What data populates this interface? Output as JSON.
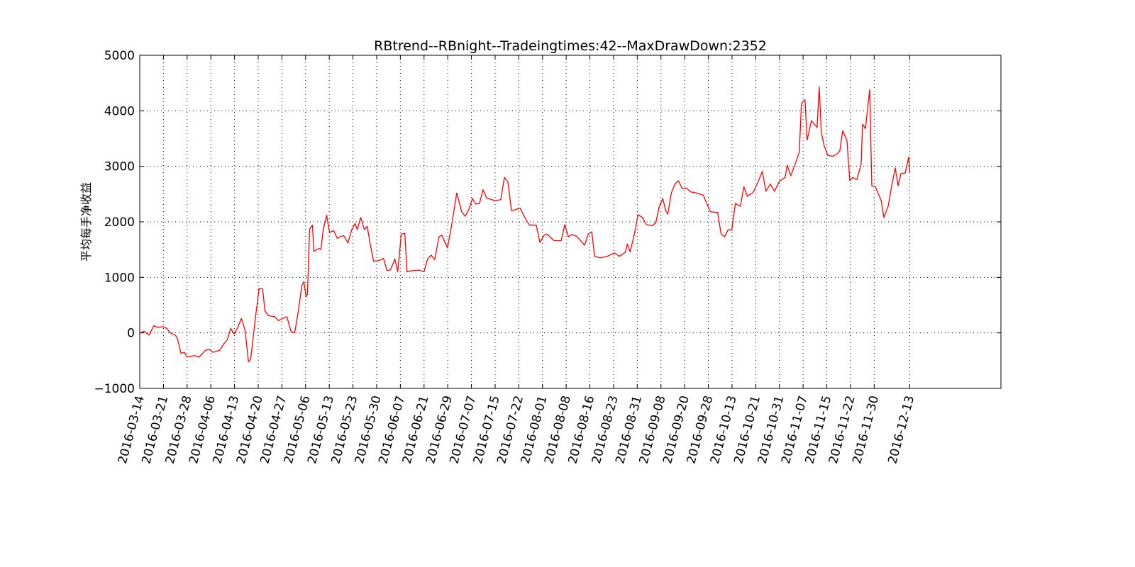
{
  "chart_data": {
    "type": "line",
    "title": "RBtrend--RBnight--Tradeingtimes:42--MaxDrawDown:2352",
    "ylabel": "平均每手净收益",
    "color": "#ff0000",
    "grid": true,
    "xlim": [
      0,
      363.5
    ],
    "ylim": [
      -1000,
      5000
    ],
    "yticks": [
      {
        "value": -1000,
        "label": "−1000"
      },
      0,
      1000,
      2000,
      3000,
      4000,
      5000
    ],
    "xticks": [
      {
        "value": 0,
        "label": "2016-03-14"
      },
      {
        "value": 10,
        "label": "2016-03-21"
      },
      {
        "value": 20,
        "label": "2016-03-28"
      },
      {
        "value": 30,
        "label": "2016-04-06"
      },
      {
        "value": 40,
        "label": "2016-04-13"
      },
      {
        "value": 50,
        "label": "2016-04-20"
      },
      {
        "value": 60,
        "label": "2016-04-27"
      },
      {
        "value": 70,
        "label": "2016-05-06"
      },
      {
        "value": 80,
        "label": "2016-05-13"
      },
      {
        "value": 90,
        "label": "2016-05-23"
      },
      {
        "value": 100,
        "label": "2016-05-30"
      },
      {
        "value": 110,
        "label": "2016-06-07"
      },
      {
        "value": 120,
        "label": "2016-06-21"
      },
      {
        "value": 130,
        "label": "2016-06-29"
      },
      {
        "value": 140,
        "label": "2016-07-07"
      },
      {
        "value": 150,
        "label": "2016-07-15"
      },
      {
        "value": 160,
        "label": "2016-07-22"
      },
      {
        "value": 170,
        "label": "2016-08-01"
      },
      {
        "value": 180,
        "label": "2016-08-08"
      },
      {
        "value": 190,
        "label": "2016-08-16"
      },
      {
        "value": 200,
        "label": "2016-08-23"
      },
      {
        "value": 210,
        "label": "2016-08-31"
      },
      {
        "value": 220,
        "label": "2016-09-08"
      },
      {
        "value": 230,
        "label": "2016-09-20"
      },
      {
        "value": 240,
        "label": "2016-09-28"
      },
      {
        "value": 250,
        "label": "2016-10-13"
      },
      {
        "value": 260,
        "label": "2016-10-21"
      },
      {
        "value": 270,
        "label": "2016-10-31"
      },
      {
        "value": 280,
        "label": "2016-11-07"
      },
      {
        "value": 290,
        "label": "2016-11-15"
      },
      {
        "value": 300,
        "label": "2016-11-22"
      },
      {
        "value": 310,
        "label": "2016-11-30"
      },
      {
        "value": 325,
        "label": "2016-12-13"
      }
    ],
    "x": [
      0,
      1.8,
      3.9,
      6,
      7.5,
      9.9,
      11.4,
      12.9,
      15,
      15.9,
      17.4,
      18.9,
      19.8,
      21.9,
      23.4,
      24.9,
      27.9,
      29.4,
      30.9,
      33.9,
      35.4,
      36.9,
      38.4,
      39.9,
      41.4,
      42.9,
      44.4,
      45.9,
      46.8,
      48.9,
      50.4,
      51.9,
      52.8,
      54.3,
      57,
      58.5,
      60.3,
      62.1,
      63.9,
      65.4,
      66.9,
      68.4,
      69.3,
      70.2,
      70.8,
      71.7,
      72.9,
      73.5,
      75.6,
      76.5,
      77.4,
      78.9,
      80.1,
      81.9,
      83.4,
      84.9,
      86.1,
      87.9,
      89.4,
      90.9,
      91.8,
      93.3,
      94.8,
      96,
      97.2,
      98.7,
      100.8,
      102.9,
      104.4,
      105.9,
      107.7,
      108.9,
      110.4,
      111.9,
      112.8,
      114.9,
      117.9,
      120,
      121.5,
      123,
      124.5,
      126.3,
      127.5,
      129.9,
      131.7,
      133.8,
      135.9,
      137.4,
      138.9,
      140.4,
      141.9,
      143.4,
      144.9,
      146.4,
      147.9,
      150,
      152.4,
      153.9,
      155.4,
      156.9,
      158.7,
      160.5,
      162.3,
      163.5,
      164.7,
      167.4,
      168.9,
      170.7,
      171.9,
      173.4,
      174.9,
      177.9,
      179.4,
      180.9,
      182.4,
      184.5,
      186.3,
      187.8,
      189.3,
      190.8,
      192,
      194.4,
      197.4,
      200.4,
      202.5,
      204.9,
      205.8,
      207,
      208.8,
      210.3,
      212.1,
      213.9,
      216.3,
      217.8,
      219.3,
      220.8,
      222,
      222.9,
      224.4,
      225.9,
      227.4,
      228.9,
      230.7,
      232.5,
      234.9,
      237.9,
      239.4,
      240.9,
      243.9,
      245.4,
      246.9,
      248.4,
      249.9,
      251.4,
      253.5,
      255,
      256.5,
      258.9,
      261,
      262.8,
      264.3,
      266.1,
      267.9,
      270,
      272.4,
      273.3,
      274.8,
      276.9,
      278.4,
      279.3,
      280.8,
      281.7,
      283.5,
      285.3,
      285.9,
      286.8,
      287.7,
      288.9,
      290.4,
      292.5,
      294.3,
      295.5,
      296.7,
      298.5,
      299.7,
      300.9,
      302.7,
      304.5,
      305.1,
      306.3,
      308.1,
      309,
      310.5,
      312.9,
      314.1,
      315.9,
      317.4,
      318.9,
      320.1,
      321.3,
      323.1,
      324.6,
      325
    ],
    "values": [
      0,
      30,
      -40,
      130,
      100,
      110,
      80,
      0,
      -40,
      -100,
      -370,
      -350,
      -430,
      -420,
      -410,
      -440,
      -310,
      -300,
      -350,
      -310,
      -200,
      -130,
      80,
      -20,
      100,
      260,
      60,
      -520,
      -480,
      300,
      800,
      790,
      400,
      310,
      290,
      220,
      260,
      290,
      20,
      0,
      380,
      850,
      920,
      650,
      700,
      1870,
      1940,
      1470,
      1520,
      1500,
      1850,
      2120,
      1810,
      1840,
      1700,
      1740,
      1750,
      1620,
      1850,
      1970,
      1860,
      2080,
      1860,
      1920,
      1620,
      1290,
      1300,
      1340,
      1120,
      1140,
      1330,
      1100,
      1780,
      1790,
      1100,
      1120,
      1130,
      1100,
      1330,
      1400,
      1320,
      1730,
      1760,
      1530,
      1950,
      2520,
      2180,
      2100,
      2220,
      2420,
      2320,
      2330,
      2580,
      2430,
      2410,
      2380,
      2400,
      2800,
      2720,
      2200,
      2220,
      2250,
      2100,
      2000,
      1940,
      1940,
      1630,
      1760,
      1780,
      1720,
      1660,
      1660,
      1950,
      1730,
      1770,
      1740,
      1650,
      1580,
      1780,
      1820,
      1380,
      1350,
      1380,
      1440,
      1380,
      1450,
      1600,
      1460,
      1780,
      2130,
      2080,
      1950,
      1930,
      1980,
      2280,
      2420,
      2200,
      2140,
      2520,
      2680,
      2740,
      2600,
      2610,
      2540,
      2520,
      2480,
      2320,
      2180,
      2170,
      1780,
      1730,
      1860,
      1850,
      2330,
      2280,
      2630,
      2460,
      2530,
      2720,
      2910,
      2550,
      2680,
      2550,
      2730,
      2800,
      3020,
      2830,
      3070,
      3260,
      4130,
      4200,
      3470,
      3820,
      3730,
      3700,
      4430,
      3600,
      3370,
      3200,
      3180,
      3220,
      3280,
      3640,
      3470,
      2740,
      2800,
      2760,
      3040,
      3760,
      3680,
      4380,
      2650,
      2630,
      2390,
      2080,
      2280,
      2650,
      2970,
      2650,
      2870,
      2880,
      3170,
      2880
    ]
  }
}
